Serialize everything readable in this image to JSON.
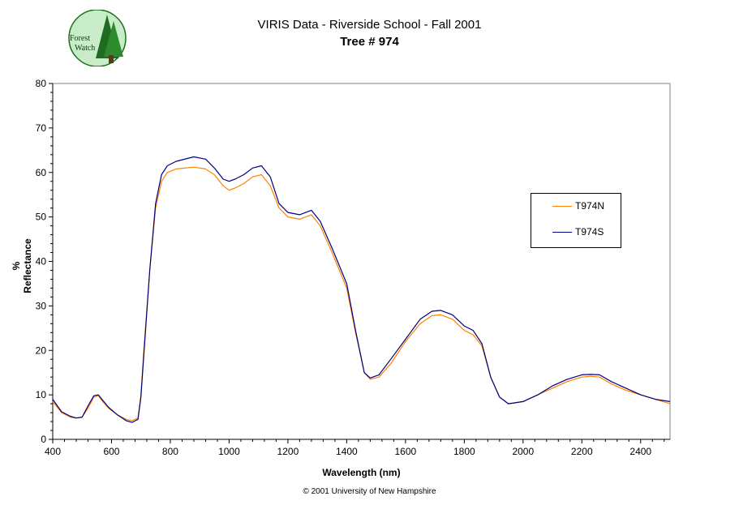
{
  "header": {
    "title_line1": "VIRIS Data - Riverside School - Fall 2001",
    "title_line2": "Tree # 974"
  },
  "logo": {
    "text_line1": "Forest",
    "text_line2": "Watch"
  },
  "footer": {
    "copyright": "© 2001 University of New Hampshire"
  },
  "colors": {
    "T974N": "#ff8000",
    "T974S": "#000080",
    "axis": "#000000"
  },
  "chart_data": {
    "type": "line",
    "xlabel": "Wavelength (nm)",
    "ylabel": "% Reflectance",
    "xlim": [
      400,
      2500
    ],
    "ylim": [
      0,
      80
    ],
    "xticks": [
      400,
      600,
      800,
      1000,
      1200,
      1400,
      1600,
      1800,
      2000,
      2200,
      2400
    ],
    "yticks": [
      0,
      10,
      20,
      30,
      40,
      50,
      60,
      70,
      80
    ],
    "grid": false,
    "legend_position": "right",
    "series": [
      {
        "name": "T974N",
        "x": [
          400,
          430,
          460,
          480,
          500,
          520,
          540,
          555,
          570,
          590,
          620,
          650,
          670,
          690,
          700,
          710,
          730,
          750,
          770,
          790,
          820,
          880,
          920,
          950,
          980,
          1000,
          1020,
          1050,
          1080,
          1110,
          1140,
          1170,
          1200,
          1240,
          1280,
          1310,
          1350,
          1400,
          1430,
          1460,
          1480,
          1510,
          1550,
          1600,
          1650,
          1690,
          1720,
          1760,
          1800,
          1830,
          1860,
          1890,
          1920,
          1950,
          2000,
          2050,
          2100,
          2150,
          2200,
          2230,
          2260,
          2300,
          2350,
          2400,
          2450,
          2500
        ],
        "y": [
          8.5,
          6,
          5,
          4.8,
          5,
          7,
          9.5,
          9.8,
          8.5,
          7,
          5.5,
          4.5,
          4.2,
          4.8,
          10,
          20,
          38,
          52,
          58,
          60,
          60.8,
          61.2,
          60.8,
          59.5,
          57,
          56,
          56.5,
          57.5,
          59,
          59.5,
          57,
          52,
          50,
          49.5,
          50.5,
          48,
          42,
          34,
          24,
          15,
          13.5,
          14,
          17,
          22,
          26,
          27.8,
          28,
          27,
          24.5,
          23.5,
          21,
          14,
          9.5,
          8,
          8.5,
          10,
          11.5,
          13,
          14,
          14.2,
          14,
          12.5,
          11,
          10,
          9,
          8
        ]
      },
      {
        "name": "T974S",
        "x": [
          400,
          430,
          460,
          480,
          500,
          520,
          540,
          555,
          570,
          590,
          620,
          650,
          670,
          690,
          700,
          710,
          730,
          750,
          770,
          790,
          820,
          880,
          920,
          950,
          980,
          1000,
          1020,
          1050,
          1080,
          1110,
          1140,
          1170,
          1200,
          1240,
          1280,
          1310,
          1350,
          1400,
          1430,
          1460,
          1480,
          1510,
          1550,
          1600,
          1650,
          1690,
          1720,
          1760,
          1800,
          1830,
          1860,
          1890,
          1920,
          1950,
          2000,
          2050,
          2100,
          2150,
          2200,
          2230,
          2260,
          2300,
          2350,
          2400,
          2450,
          2500
        ],
        "y": [
          9,
          6.2,
          5.2,
          4.8,
          5,
          7.5,
          9.8,
          10,
          8.8,
          7.2,
          5.5,
          4.2,
          3.8,
          4.5,
          9.5,
          19,
          38,
          53,
          59.5,
          61.5,
          62.5,
          63.5,
          63,
          61,
          58.5,
          58,
          58.5,
          59.5,
          61,
          61.5,
          59,
          53,
          51,
          50.5,
          51.5,
          49,
          43,
          35,
          24.5,
          15,
          13.8,
          14.5,
          18,
          22.5,
          27,
          28.8,
          29,
          28,
          25.5,
          24.5,
          21.5,
          14,
          9.5,
          8,
          8.5,
          10,
          12,
          13.5,
          14.5,
          14.6,
          14.5,
          13,
          11.5,
          10,
          9,
          8.5
        ]
      }
    ]
  }
}
